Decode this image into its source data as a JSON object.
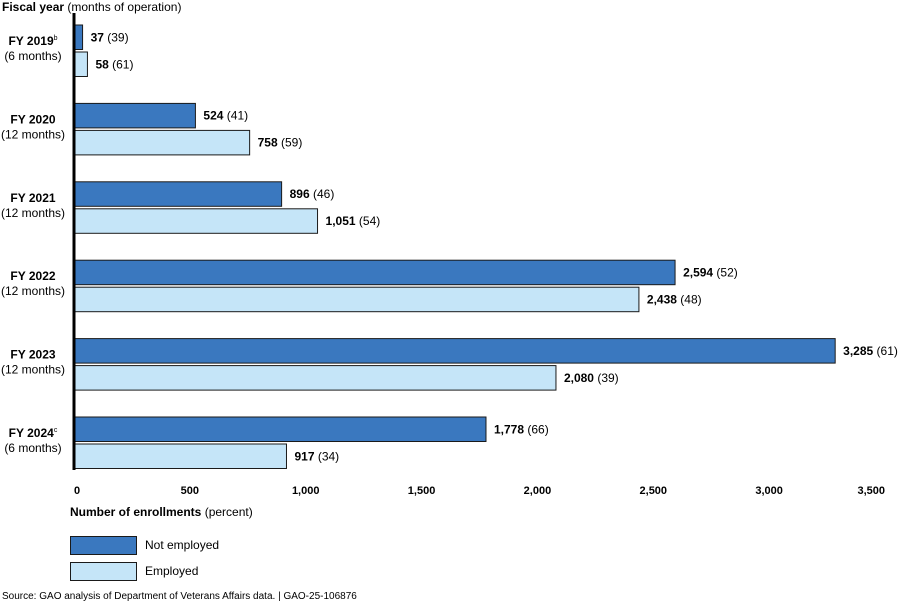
{
  "colors": {
    "not_employed": "#3a78bf",
    "employed": "#c5e5f8",
    "stroke": "#1a1a1a"
  },
  "y_title": {
    "bold": "Fiscal year",
    "normal": " (months of operation)"
  },
  "x_title": {
    "bold": "Number of enrollments",
    "normal": " (percent)"
  },
  "legend": {
    "not_employed": "Not employed",
    "employed": "Employed"
  },
  "source": "Source: GAO analysis of Department of Veterans Affairs data.  |  GAO-25-106876",
  "chart_data": {
    "type": "bar",
    "orientation": "horizontal",
    "xlabel": "Number of enrollments (percent)",
    "ylabel": "Fiscal year (months of operation)",
    "xlim": [
      0,
      3500
    ],
    "x_ticks": [
      0,
      500,
      1000,
      1500,
      2000,
      2500,
      3000,
      3500
    ],
    "x_tick_labels": [
      "0",
      "500",
      "1,000",
      "1,500",
      "2,000",
      "2,500",
      "3,000",
      "3,500"
    ],
    "categories": [
      {
        "label": "FY 2019",
        "sup": "b",
        "sub": "(6 months)"
      },
      {
        "label": "FY 2020",
        "sup": "",
        "sub": "(12 months)"
      },
      {
        "label": "FY 2021",
        "sup": "",
        "sub": "(12 months)"
      },
      {
        "label": "FY 2022",
        "sup": "",
        "sub": "(12 months)"
      },
      {
        "label": "FY 2023",
        "sup": "",
        "sub": "(12 months)"
      },
      {
        "label": "FY 2024",
        "sup": "c",
        "sub": "(6 months)"
      }
    ],
    "series": [
      {
        "name": "Not employed",
        "key": "not_employed",
        "values": [
          37,
          524,
          896,
          2594,
          3285,
          1778
        ],
        "value_labels": [
          "37",
          "524",
          "896",
          "2,594",
          "3,285",
          "1,778"
        ],
        "percent_labels": [
          "(39)",
          "(41)",
          "(46)",
          "(52)",
          "(61)",
          "(66)"
        ]
      },
      {
        "name": "Employed",
        "key": "employed",
        "values": [
          58,
          758,
          1051,
          2438,
          2080,
          917
        ],
        "value_labels": [
          "58",
          "758",
          "1,051",
          "2,438",
          "2,080",
          "917"
        ],
        "percent_labels": [
          "(61)",
          "(59)",
          "(54)",
          "(48)",
          "(39)",
          "(34)"
        ]
      }
    ]
  }
}
